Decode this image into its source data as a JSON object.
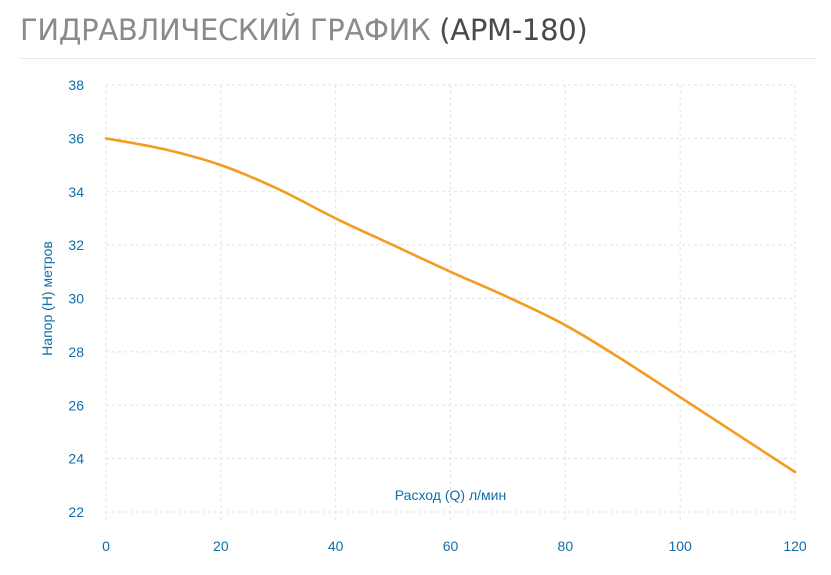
{
  "header": {
    "title_main": "ГИДРАВЛИЧЕСКИЙ ГРАФИК",
    "title_model": "(APM-180)"
  },
  "chart_data": {
    "type": "line",
    "title": "ГИДРАВЛИЧЕСКИЙ ГРАФИК (APM-180)",
    "xlabel": "Расход (Q) л/мин",
    "ylabel": "Напор (Н) метров",
    "xlim": [
      0,
      120
    ],
    "ylim": [
      22,
      38
    ],
    "x_ticks": [
      0,
      20,
      40,
      60,
      80,
      100,
      120
    ],
    "y_ticks": [
      22,
      24,
      26,
      28,
      30,
      32,
      34,
      36,
      38
    ],
    "grid": true,
    "legend": "none",
    "colors": {
      "series": "#f39c1f",
      "axis_text": "#0f6fa8",
      "grid": "#e3e3e3"
    },
    "series": [
      {
        "x": [
          0,
          10,
          20,
          30,
          40,
          50,
          60,
          70,
          80,
          90,
          100,
          110,
          120
        ],
        "values": [
          36,
          35.6,
          35,
          34.1,
          33,
          32,
          31,
          30.05,
          29,
          27.7,
          26.3,
          24.9,
          23.5
        ]
      }
    ]
  }
}
